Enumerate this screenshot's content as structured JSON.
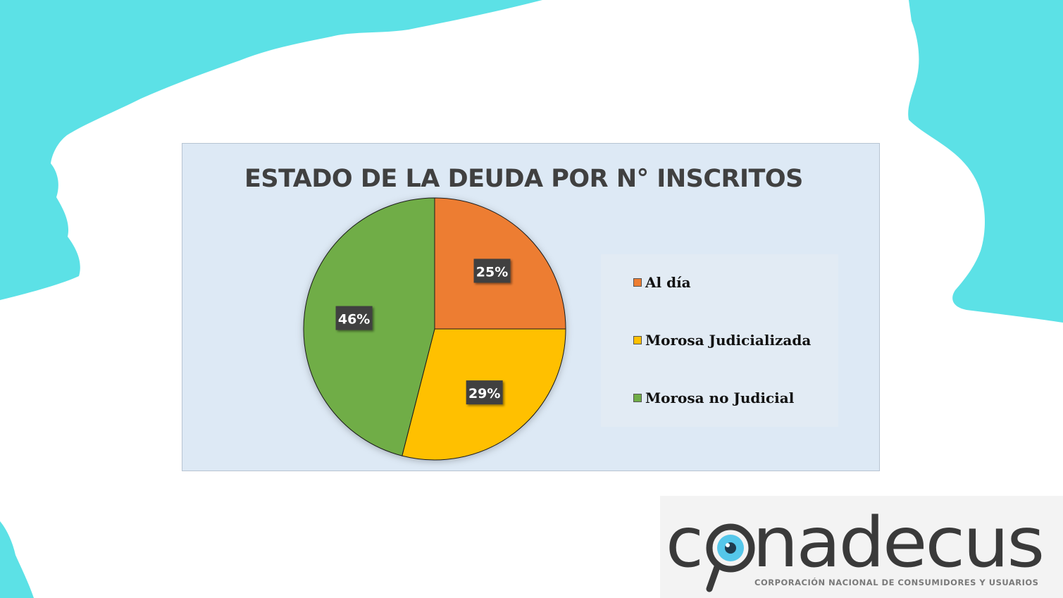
{
  "colors": {
    "brush": "#5ce1e6",
    "panel_bg": "#dde9f5",
    "title": "#404040",
    "label_box": "#404040",
    "logo_dark": "#3a3a3a",
    "logo_accent": "#55c7ea"
  },
  "logo": {
    "wordmark_left": "c",
    "wordmark_right": "nadecus",
    "tagline": "CORPORACIÓN NACIONAL DE CONSUMIDORES Y USUARIOS",
    "icon": "magnifier-eye-icon"
  },
  "chart_data": {
    "type": "pie",
    "title": "ESTADO DE LA DEUDA POR N° INSCRITOS",
    "slices": [
      {
        "label": "Al día",
        "value": 25,
        "display": "25%",
        "color": "#ed7d31"
      },
      {
        "label": "Morosa Judicializada",
        "value": 29,
        "display": "29%",
        "color": "#ffc000"
      },
      {
        "label": "Morosa no Judicial",
        "value": 46,
        "display": "46%",
        "color": "#70ad47"
      }
    ],
    "legend_position": "right",
    "data_labels": true
  }
}
